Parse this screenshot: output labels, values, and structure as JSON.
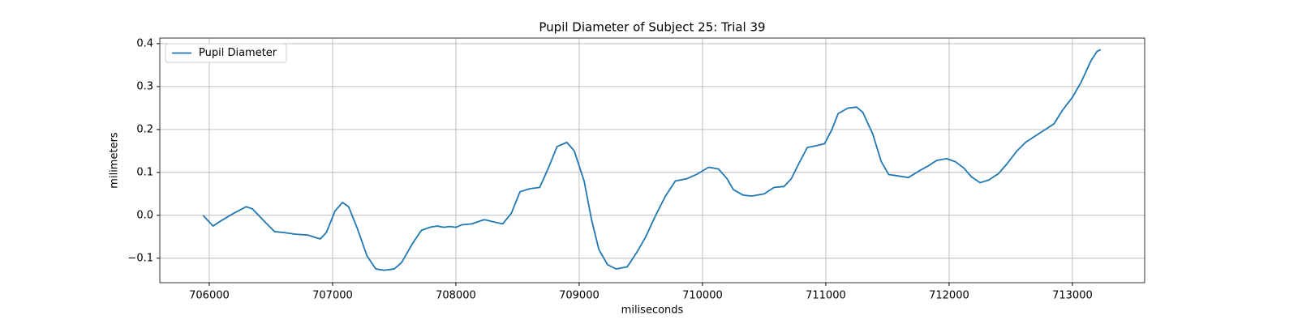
{
  "chart_data": {
    "type": "line",
    "title": "Pupil Diameter of Subject 25: Trial 39",
    "x_label": "miliseconds",
    "y_label": "milimeters",
    "legend": "upper left",
    "grid": true,
    "xlim": [
      705599,
      713586
    ],
    "ylim": [
      -0.157,
      0.413
    ],
    "xticks": [
      706000,
      707000,
      708000,
      709000,
      710000,
      711000,
      712000,
      713000
    ],
    "yticks": [
      {
        "value": -0.1,
        "label": "−0.1"
      },
      {
        "value": 0,
        "label": "0.0"
      },
      0.1,
      0.2,
      0.3,
      0.4
    ],
    "series": [
      {
        "name": "Pupil Diameter",
        "color": "#1f77b4",
        "x": [
          705950,
          706030,
          706100,
          706200,
          706300,
          706350,
          706450,
          706530,
          706600,
          706700,
          706800,
          706900,
          706950,
          707020,
          707080,
          707130,
          707200,
          707280,
          707350,
          707420,
          707500,
          707560,
          707650,
          707720,
          707800,
          707850,
          707900,
          707950,
          708000,
          708050,
          708130,
          708230,
          708300,
          708380,
          708450,
          708520,
          708600,
          708680,
          708750,
          708820,
          708900,
          708960,
          709040,
          709100,
          709160,
          709230,
          709300,
          709390,
          709470,
          709540,
          709620,
          709700,
          709780,
          709870,
          709950,
          710050,
          710130,
          710200,
          710250,
          710330,
          710400,
          710500,
          710580,
          710660,
          710720,
          710780,
          710850,
          710920,
          710990,
          711050,
          711100,
          711180,
          711250,
          711300,
          711380,
          711450,
          711510,
          711580,
          711670,
          711760,
          711830,
          711900,
          711980,
          712050,
          712120,
          712180,
          712250,
          712320,
          712400,
          712470,
          712550,
          712620,
          712700,
          712770,
          712850,
          712920,
          713000,
          713070,
          713150,
          713200,
          713230
        ],
        "values": [
          0.0,
          -0.025,
          -0.012,
          0.005,
          0.02,
          0.015,
          -0.015,
          -0.038,
          -0.04,
          -0.044,
          -0.046,
          -0.055,
          -0.04,
          0.01,
          0.03,
          0.02,
          -0.03,
          -0.095,
          -0.125,
          -0.128,
          -0.125,
          -0.11,
          -0.065,
          -0.035,
          -0.027,
          -0.025,
          -0.028,
          -0.026,
          -0.028,
          -0.022,
          -0.02,
          -0.01,
          -0.015,
          -0.02,
          0.005,
          0.055,
          0.062,
          0.065,
          0.11,
          0.16,
          0.17,
          0.15,
          0.08,
          -0.01,
          -0.08,
          -0.115,
          -0.125,
          -0.12,
          -0.085,
          -0.05,
          0.0,
          0.045,
          0.08,
          0.085,
          0.095,
          0.112,
          0.108,
          0.085,
          0.06,
          0.047,
          0.045,
          0.05,
          0.065,
          0.067,
          0.085,
          0.12,
          0.158,
          0.162,
          0.167,
          0.2,
          0.237,
          0.25,
          0.252,
          0.24,
          0.19,
          0.125,
          0.095,
          0.092,
          0.088,
          0.104,
          0.115,
          0.128,
          0.132,
          0.125,
          0.11,
          0.09,
          0.076,
          0.082,
          0.097,
          0.12,
          0.15,
          0.17,
          0.185,
          0.198,
          0.213,
          0.245,
          0.275,
          0.31,
          0.36,
          0.382,
          0.386
        ]
      }
    ]
  }
}
